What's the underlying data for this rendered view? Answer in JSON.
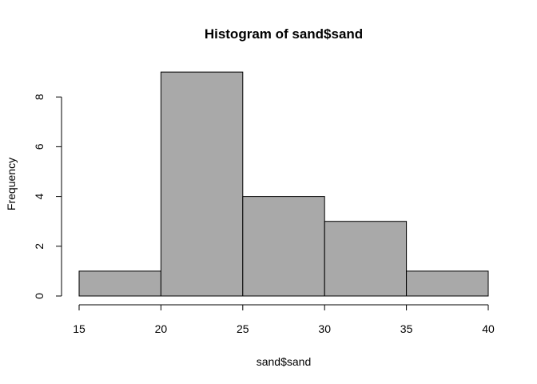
{
  "chart_data": {
    "type": "bar",
    "title": "Histogram of sand$sand",
    "xlabel": "sand$sand",
    "ylabel": "Frequency",
    "bins": [
      {
        "start": 15,
        "end": 20,
        "count": 1
      },
      {
        "start": 20,
        "end": 25,
        "count": 9
      },
      {
        "start": 25,
        "end": 30,
        "count": 4
      },
      {
        "start": 30,
        "end": 35,
        "count": 3
      },
      {
        "start": 35,
        "end": 40,
        "count": 1
      }
    ],
    "xticks": [
      15,
      20,
      25,
      30,
      35,
      40
    ],
    "yticks": [
      0,
      2,
      4,
      6,
      8
    ],
    "xlim": [
      15,
      40
    ],
    "ylim": [
      0,
      9
    ],
    "grid": false,
    "bar_color": "#a9a9a9",
    "edge_color": "#000000"
  }
}
